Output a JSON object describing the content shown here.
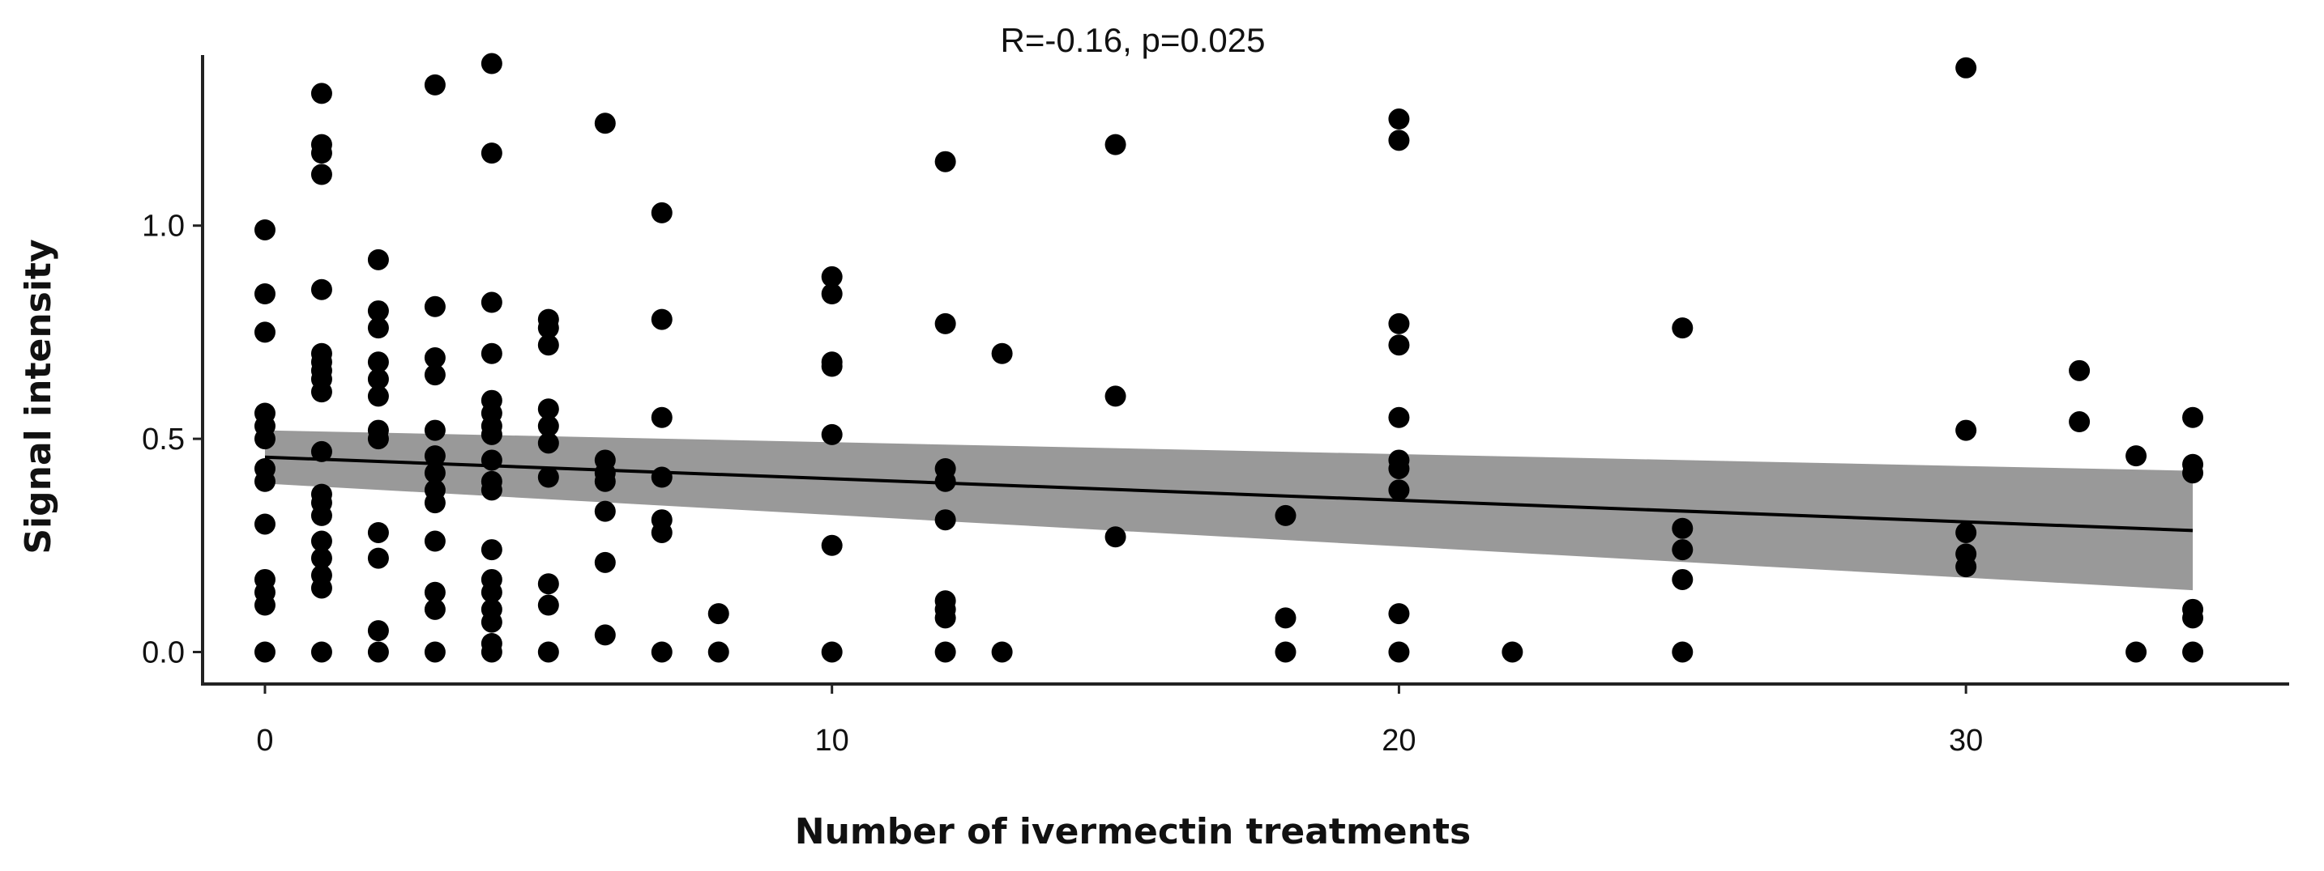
{
  "chart_data": {
    "type": "scatter",
    "title": "",
    "annotation": "R=-0.16, p=0.025",
    "xlabel": "Number of ivermectin treatments",
    "ylabel": "Signal intensity",
    "xlim": [
      -1.1,
      35.7
    ],
    "ylim": [
      -0.075,
      1.4
    ],
    "xticks": [
      0,
      10,
      20,
      30
    ],
    "xtick_labels": [
      "0",
      "10",
      "20",
      "30"
    ],
    "yticks": [
      0.0,
      0.5,
      1.0
    ],
    "ytick_labels": [
      "0.0",
      "0.5",
      "1.0"
    ],
    "grid": false,
    "point_color": "#000000",
    "band_color": "#999999",
    "line_color": "#000000",
    "regression": {
      "x": [
        0,
        34
      ],
      "y": [
        0.457,
        0.285
      ]
    },
    "confidence_band": {
      "x": [
        0,
        34
      ],
      "lower": [
        0.395,
        0.145
      ],
      "upper": [
        0.52,
        0.425
      ]
    },
    "points": [
      [
        0,
        0.99
      ],
      [
        0,
        0.84
      ],
      [
        0,
        0.75
      ],
      [
        0,
        0.56
      ],
      [
        0,
        0.53
      ],
      [
        0,
        0.5
      ],
      [
        0,
        0.43
      ],
      [
        0,
        0.4
      ],
      [
        0,
        0.3
      ],
      [
        0,
        0.17
      ],
      [
        0,
        0.14
      ],
      [
        0,
        0.11
      ],
      [
        0,
        0.0
      ],
      [
        1,
        1.31
      ],
      [
        1,
        1.19
      ],
      [
        1,
        1.17
      ],
      [
        1,
        1.12
      ],
      [
        1,
        0.85
      ],
      [
        1,
        0.7
      ],
      [
        1,
        0.68
      ],
      [
        1,
        0.66
      ],
      [
        1,
        0.64
      ],
      [
        1,
        0.61
      ],
      [
        1,
        0.47
      ],
      [
        1,
        0.37
      ],
      [
        1,
        0.35
      ],
      [
        1,
        0.32
      ],
      [
        1,
        0.26
      ],
      [
        1,
        0.22
      ],
      [
        1,
        0.18
      ],
      [
        1,
        0.15
      ],
      [
        1,
        0.0
      ],
      [
        2,
        0.92
      ],
      [
        2,
        0.8
      ],
      [
        2,
        0.76
      ],
      [
        2,
        0.68
      ],
      [
        2,
        0.64
      ],
      [
        2,
        0.6
      ],
      [
        2,
        0.52
      ],
      [
        2,
        0.5
      ],
      [
        2,
        0.28
      ],
      [
        2,
        0.22
      ],
      [
        2,
        0.05
      ],
      [
        2,
        0.0
      ],
      [
        3,
        1.33
      ],
      [
        3,
        0.81
      ],
      [
        3,
        0.69
      ],
      [
        3,
        0.65
      ],
      [
        3,
        0.52
      ],
      [
        3,
        0.46
      ],
      [
        3,
        0.42
      ],
      [
        3,
        0.38
      ],
      [
        3,
        0.35
      ],
      [
        3,
        0.26
      ],
      [
        3,
        0.14
      ],
      [
        3,
        0.1
      ],
      [
        3,
        0.0
      ],
      [
        4,
        1.38
      ],
      [
        4,
        1.17
      ],
      [
        4,
        0.82
      ],
      [
        4,
        0.7
      ],
      [
        4,
        0.59
      ],
      [
        4,
        0.56
      ],
      [
        4,
        0.53
      ],
      [
        4,
        0.51
      ],
      [
        4,
        0.45
      ],
      [
        4,
        0.4
      ],
      [
        4,
        0.38
      ],
      [
        4,
        0.24
      ],
      [
        4,
        0.17
      ],
      [
        4,
        0.14
      ],
      [
        4,
        0.1
      ],
      [
        4,
        0.07
      ],
      [
        4,
        0.02
      ],
      [
        4,
        0.0
      ],
      [
        5,
        0.78
      ],
      [
        5,
        0.76
      ],
      [
        5,
        0.72
      ],
      [
        5,
        0.57
      ],
      [
        5,
        0.53
      ],
      [
        5,
        0.49
      ],
      [
        5,
        0.41
      ],
      [
        5,
        0.16
      ],
      [
        5,
        0.11
      ],
      [
        5,
        0.0
      ],
      [
        6,
        1.24
      ],
      [
        6,
        0.45
      ],
      [
        6,
        0.42
      ],
      [
        6,
        0.4
      ],
      [
        6,
        0.33
      ],
      [
        6,
        0.21
      ],
      [
        6,
        0.04
      ],
      [
        7,
        1.03
      ],
      [
        7,
        0.78
      ],
      [
        7,
        0.55
      ],
      [
        7,
        0.41
      ],
      [
        7,
        0.31
      ],
      [
        7,
        0.28
      ],
      [
        7,
        0.0
      ],
      [
        8,
        0.09
      ],
      [
        8,
        0.0
      ],
      [
        10,
        0.88
      ],
      [
        10,
        0.84
      ],
      [
        10,
        0.68
      ],
      [
        10,
        0.67
      ],
      [
        10,
        0.51
      ],
      [
        10,
        0.25
      ],
      [
        10,
        0.0
      ],
      [
        12,
        1.15
      ],
      [
        12,
        0.77
      ],
      [
        12,
        0.43
      ],
      [
        12,
        0.4
      ],
      [
        12,
        0.31
      ],
      [
        12,
        0.12
      ],
      [
        12,
        0.1
      ],
      [
        12,
        0.08
      ],
      [
        12,
        0.0
      ],
      [
        13,
        0.7
      ],
      [
        13,
        0.0
      ],
      [
        15,
        1.19
      ],
      [
        15,
        0.6
      ],
      [
        15,
        0.27
      ],
      [
        18,
        0.32
      ],
      [
        18,
        0.08
      ],
      [
        18,
        0.0
      ],
      [
        20,
        1.25
      ],
      [
        20,
        1.2
      ],
      [
        20,
        0.77
      ],
      [
        20,
        0.72
      ],
      [
        20,
        0.55
      ],
      [
        20,
        0.45
      ],
      [
        20,
        0.43
      ],
      [
        20,
        0.38
      ],
      [
        20,
        0.09
      ],
      [
        20,
        0.0
      ],
      [
        22,
        0.0
      ],
      [
        25,
        0.76
      ],
      [
        25,
        0.29
      ],
      [
        25,
        0.24
      ],
      [
        25,
        0.17
      ],
      [
        25,
        0.0
      ],
      [
        30,
        1.37
      ],
      [
        30,
        0.52
      ],
      [
        30,
        0.28
      ],
      [
        30,
        0.23
      ],
      [
        30,
        0.2
      ],
      [
        32,
        0.66
      ],
      [
        32,
        0.54
      ],
      [
        33,
        0.46
      ],
      [
        33,
        0.0
      ],
      [
        34,
        0.55
      ],
      [
        34,
        0.44
      ],
      [
        34,
        0.42
      ],
      [
        34,
        0.1
      ],
      [
        34,
        0.08
      ],
      [
        34,
        0.0
      ]
    ]
  }
}
